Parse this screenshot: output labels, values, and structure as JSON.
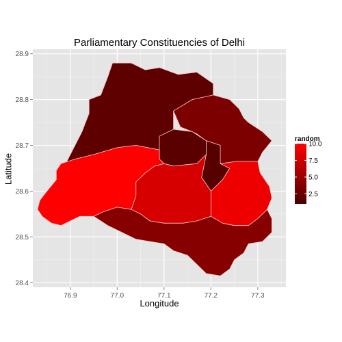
{
  "chart_data": {
    "type": "choropleth",
    "title": "Parliamentary Constituencies of Delhi",
    "xlabel": "Longitude",
    "ylabel": "Latitude",
    "xlim": [
      76.82,
      77.36
    ],
    "ylim": [
      28.39,
      28.91
    ],
    "x_ticks": [
      "76.9",
      "77.0",
      "77.1",
      "77.2",
      "77.3"
    ],
    "x_tick_values": [
      76.9,
      77.0,
      77.1,
      77.2,
      77.3
    ],
    "y_ticks": [
      "28.4",
      "28.5",
      "28.6",
      "28.7",
      "28.8",
      "28.9"
    ],
    "y_tick_values": [
      28.4,
      28.5,
      28.6,
      28.7,
      28.8,
      28.9
    ],
    "grid": true,
    "legend": {
      "title": "random",
      "placement": "right",
      "range": [
        1,
        10
      ],
      "ticks": [
        "10.0",
        "7.5",
        "5.0",
        "2.5"
      ],
      "tick_values": [
        10,
        7.5,
        5,
        2.5
      ],
      "low_color": "#4a0000",
      "high_color": "#ff0000"
    },
    "regions": [
      {
        "id": "north-west",
        "value": 2.0,
        "coords": [
          [
            76.99,
            28.88
          ],
          [
            77.03,
            28.88
          ],
          [
            77.06,
            28.865
          ],
          [
            77.09,
            28.87
          ],
          [
            77.13,
            28.855
          ],
          [
            77.17,
            28.86
          ],
          [
            77.205,
            28.835
          ],
          [
            77.205,
            28.81
          ],
          [
            77.16,
            28.8
          ],
          [
            77.12,
            28.775
          ],
          [
            77.12,
            28.735
          ],
          [
            77.09,
            28.72
          ],
          [
            77.09,
            28.69
          ],
          [
            77.04,
            28.7
          ],
          [
            77.0,
            28.695
          ],
          [
            76.95,
            28.68
          ],
          [
            76.91,
            28.67
          ],
          [
            76.89,
            28.66
          ],
          [
            76.91,
            28.7
          ],
          [
            76.925,
            28.73
          ],
          [
            76.94,
            28.77
          ],
          [
            76.94,
            28.8
          ],
          [
            76.965,
            28.81
          ],
          [
            76.98,
            28.85
          ]
        ]
      },
      {
        "id": "north-east",
        "value": 3.5,
        "coords": [
          [
            77.12,
            28.775
          ],
          [
            77.16,
            28.8
          ],
          [
            77.205,
            28.81
          ],
          [
            77.24,
            28.8
          ],
          [
            77.26,
            28.78
          ],
          [
            77.27,
            28.76
          ],
          [
            77.28,
            28.75
          ],
          [
            77.31,
            28.73
          ],
          [
            77.33,
            28.71
          ],
          [
            77.31,
            28.685
          ],
          [
            77.3,
            28.665
          ],
          [
            77.255,
            28.665
          ],
          [
            77.22,
            28.66
          ],
          [
            77.22,
            28.7
          ],
          [
            77.19,
            28.71
          ],
          [
            77.17,
            28.725
          ],
          [
            77.16,
            28.73
          ],
          [
            77.135,
            28.74
          ]
        ]
      },
      {
        "id": "chandni-chowk",
        "value": 1.8,
        "coords": [
          [
            77.09,
            28.69
          ],
          [
            77.09,
            28.72
          ],
          [
            77.12,
            28.735
          ],
          [
            77.16,
            28.73
          ],
          [
            77.19,
            28.71
          ],
          [
            77.19,
            28.68
          ],
          [
            77.17,
            28.66
          ],
          [
            77.12,
            28.655
          ],
          [
            77.1,
            28.66
          ],
          [
            77.09,
            28.67
          ]
        ]
      },
      {
        "id": "new-delhi",
        "value": 1.6,
        "coords": [
          [
            77.19,
            28.68
          ],
          [
            77.19,
            28.71
          ],
          [
            77.22,
            28.7
          ],
          [
            77.22,
            28.66
          ],
          [
            77.24,
            28.65
          ],
          [
            77.225,
            28.625
          ],
          [
            77.2,
            28.6
          ],
          [
            77.18,
            28.63
          ]
        ]
      },
      {
        "id": "east-delhi",
        "value": 9.2,
        "coords": [
          [
            77.22,
            28.66
          ],
          [
            77.255,
            28.665
          ],
          [
            77.3,
            28.665
          ],
          [
            77.305,
            28.64
          ],
          [
            77.325,
            28.61
          ],
          [
            77.33,
            28.585
          ],
          [
            77.32,
            28.56
          ],
          [
            77.3,
            28.54
          ],
          [
            77.28,
            28.525
          ],
          [
            77.25,
            28.525
          ],
          [
            77.225,
            28.53
          ],
          [
            77.2,
            28.545
          ],
          [
            77.2,
            28.58
          ],
          [
            77.2,
            28.6
          ],
          [
            77.225,
            28.625
          ],
          [
            77.24,
            28.65
          ]
        ]
      },
      {
        "id": "west-delhi",
        "value": 8.0,
        "coords": [
          [
            77.1,
            28.66
          ],
          [
            77.12,
            28.655
          ],
          [
            77.17,
            28.66
          ],
          [
            77.19,
            28.68
          ],
          [
            77.18,
            28.63
          ],
          [
            77.2,
            28.6
          ],
          [
            77.2,
            28.58
          ],
          [
            77.2,
            28.545
          ],
          [
            77.17,
            28.535
          ],
          [
            77.14,
            28.53
          ],
          [
            77.1,
            28.53
          ],
          [
            77.07,
            28.535
          ],
          [
            77.05,
            28.55
          ],
          [
            77.03,
            28.56
          ],
          [
            77.04,
            28.59
          ],
          [
            77.04,
            28.62
          ],
          [
            77.06,
            28.64
          ],
          [
            77.08,
            28.655
          ]
        ]
      },
      {
        "id": "south-west",
        "value": 10.0,
        "coords": [
          [
            76.88,
            28.66
          ],
          [
            76.91,
            28.67
          ],
          [
            76.95,
            28.68
          ],
          [
            77.0,
            28.695
          ],
          [
            77.04,
            28.7
          ],
          [
            77.09,
            28.69
          ],
          [
            77.09,
            28.67
          ],
          [
            77.1,
            28.66
          ],
          [
            77.08,
            28.655
          ],
          [
            77.06,
            28.64
          ],
          [
            77.04,
            28.62
          ],
          [
            77.04,
            28.59
          ],
          [
            77.03,
            28.56
          ],
          [
            77.0,
            28.565
          ],
          [
            76.97,
            28.555
          ],
          [
            76.95,
            28.545
          ],
          [
            76.92,
            28.545
          ],
          [
            76.9,
            28.535
          ],
          [
            76.88,
            28.525
          ],
          [
            76.86,
            28.53
          ],
          [
            76.84,
            28.545
          ],
          [
            76.83,
            28.56
          ],
          [
            76.835,
            28.58
          ],
          [
            76.85,
            28.6
          ],
          [
            76.87,
            28.625
          ],
          [
            76.87,
            28.645
          ]
        ]
      },
      {
        "id": "south-delhi",
        "value": 4.0,
        "coords": [
          [
            76.95,
            28.545
          ],
          [
            76.97,
            28.555
          ],
          [
            77.0,
            28.565
          ],
          [
            77.03,
            28.56
          ],
          [
            77.05,
            28.55
          ],
          [
            77.07,
            28.535
          ],
          [
            77.1,
            28.53
          ],
          [
            77.14,
            28.53
          ],
          [
            77.17,
            28.535
          ],
          [
            77.2,
            28.545
          ],
          [
            77.225,
            28.53
          ],
          [
            77.25,
            28.525
          ],
          [
            77.28,
            28.525
          ],
          [
            77.3,
            28.54
          ],
          [
            77.32,
            28.56
          ],
          [
            77.33,
            28.54
          ],
          [
            77.33,
            28.51
          ],
          [
            77.31,
            28.49
          ],
          [
            77.28,
            28.485
          ],
          [
            77.27,
            28.465
          ],
          [
            77.25,
            28.45
          ],
          [
            77.24,
            28.43
          ],
          [
            77.22,
            28.415
          ],
          [
            77.19,
            28.42
          ],
          [
            77.17,
            28.44
          ],
          [
            77.15,
            28.46
          ],
          [
            77.12,
            28.47
          ],
          [
            77.1,
            28.485
          ],
          [
            77.07,
            28.49
          ],
          [
            77.04,
            28.495
          ],
          [
            77.01,
            28.51
          ],
          [
            76.98,
            28.525
          ]
        ]
      }
    ]
  }
}
